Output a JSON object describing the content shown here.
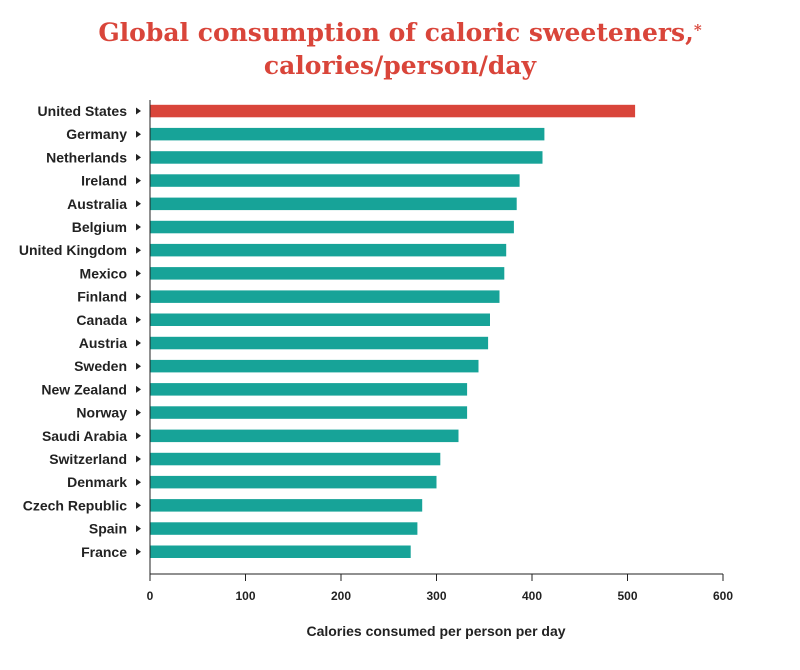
{
  "chart_data": {
    "type": "bar",
    "orientation": "horizontal",
    "title_line1": "Global consumption of caloric sweeteners,",
    "title_mark": "*",
    "title_line2": "calories/person/day",
    "xlabel": "Calories consumed per person per day",
    "ylabel": "",
    "xlim": [
      0,
      600
    ],
    "xticks": [
      "0",
      "100",
      "200",
      "300",
      "400",
      "500",
      "600"
    ],
    "categories": [
      "United States",
      "Germany",
      "Netherlands",
      "Ireland",
      "Australia",
      "Belgium",
      "United Kingdom",
      "Mexico",
      "Finland",
      "Canada",
      "Austria",
      "Sweden",
      "New Zealand",
      "Norway",
      "Saudi Arabia",
      "Switzerland",
      "Denmark",
      "Czech Republic",
      "Spain",
      "France"
    ],
    "values": [
      508,
      413,
      411,
      387,
      384,
      381,
      373,
      371,
      366,
      356,
      354,
      344,
      332,
      332,
      323,
      304,
      300,
      285,
      280,
      273
    ],
    "highlight_index": 0,
    "colors": {
      "bar": "#17a398",
      "highlight": "#d9453a",
      "title": "#d9453a",
      "text": "#222222",
      "axis": "#222222"
    },
    "grid": false,
    "legend": "none"
  }
}
